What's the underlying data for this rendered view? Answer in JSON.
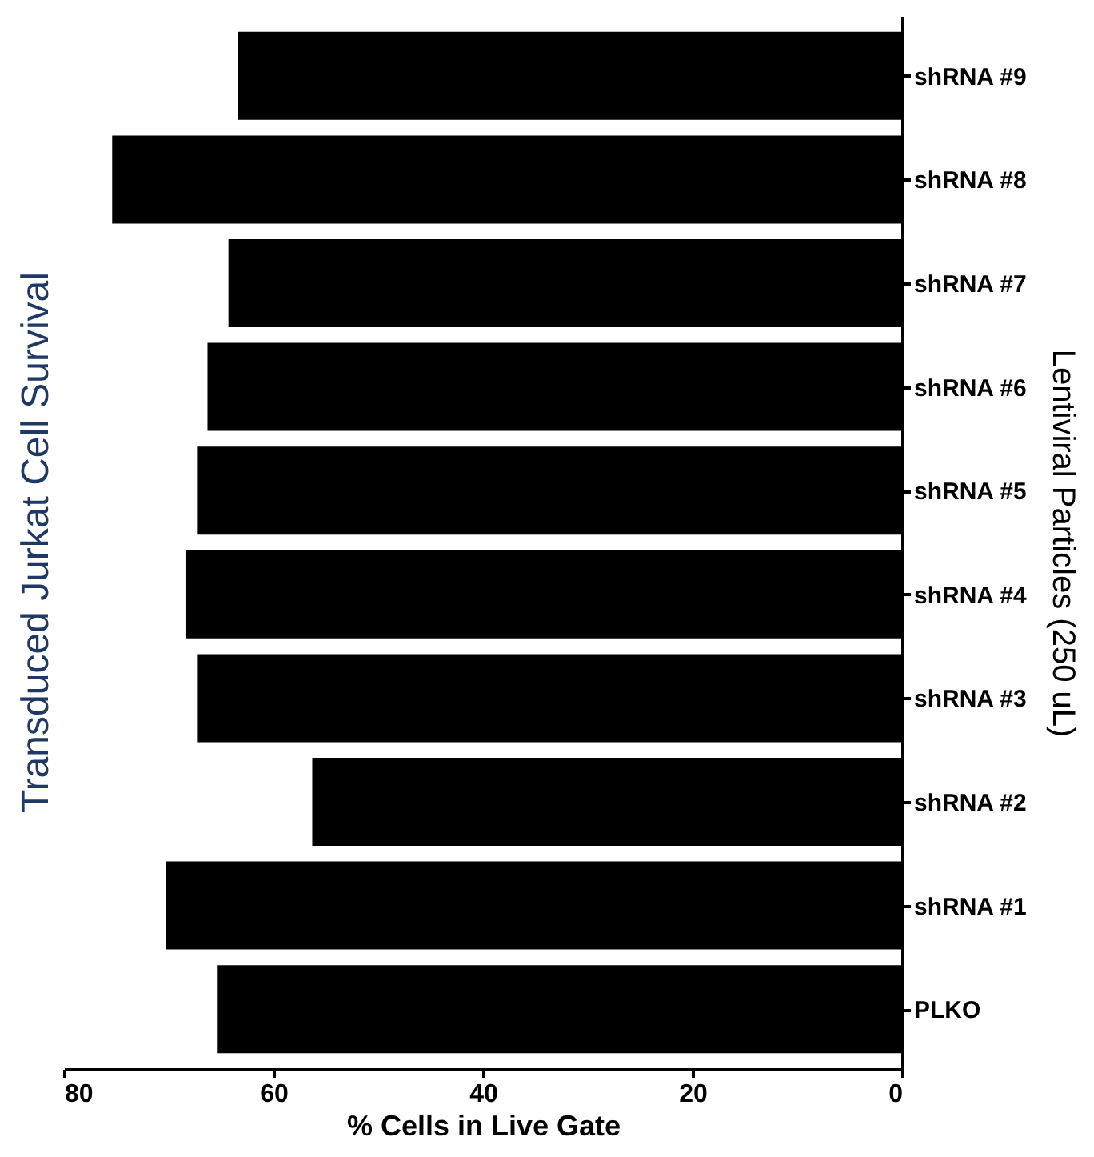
{
  "chart_data": {
    "type": "bar",
    "orientation": "horizontal",
    "title": "Transduced Jurkat Cell Survival",
    "xlabel": "% Cells in Live Gate",
    "ylabel": "Lentiviral Particles (250 uL)",
    "categories": [
      "shRNA #9",
      "shRNA #8",
      "shRNA #7",
      "shRNA #6",
      "shRNA #5",
      "shRNA #4",
      "shRNA #3",
      "shRNA #2",
      "shRNA #1",
      "PLKO"
    ],
    "values": [
      63.4,
      75.4,
      64.3,
      66.3,
      67.3,
      68.4,
      67.3,
      56.3,
      70.3,
      65.4
    ],
    "color": "#000000",
    "xlim": [
      80,
      0
    ],
    "xticks": [
      80,
      60,
      40,
      20,
      0
    ],
    "grid": false
  }
}
